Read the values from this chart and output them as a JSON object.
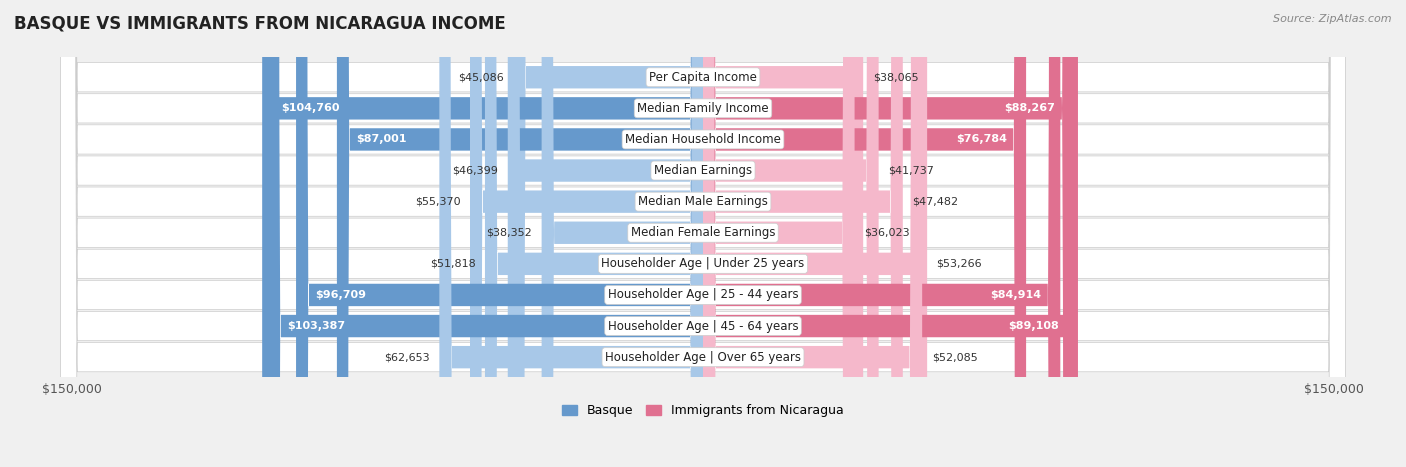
{
  "title": "BASQUE VS IMMIGRANTS FROM NICARAGUA INCOME",
  "source": "Source: ZipAtlas.com",
  "categories": [
    "Per Capita Income",
    "Median Family Income",
    "Median Household Income",
    "Median Earnings",
    "Median Male Earnings",
    "Median Female Earnings",
    "Householder Age | Under 25 years",
    "Householder Age | 25 - 44 years",
    "Householder Age | 45 - 64 years",
    "Householder Age | Over 65 years"
  ],
  "basque_values": [
    45086,
    104760,
    87001,
    46399,
    55370,
    38352,
    51818,
    96709,
    103387,
    62653
  ],
  "nicaragua_values": [
    38065,
    88267,
    76784,
    41737,
    47482,
    36023,
    53266,
    84914,
    89108,
    52085
  ],
  "basque_color_light": "#a8c8e8",
  "basque_color_dark": "#6699cc",
  "nicaragua_color_light": "#f5b8cb",
  "nicaragua_color_dark": "#e07090",
  "max_value": 150000,
  "legend_basque": "Basque",
  "legend_nicaragua": "Immigrants from Nicaragua",
  "background_color": "#f0f0f0",
  "row_bg_color": "#ffffff",
  "label_fontsize": 8.5,
  "title_fontsize": 12,
  "value_fontsize": 8,
  "source_fontsize": 8
}
